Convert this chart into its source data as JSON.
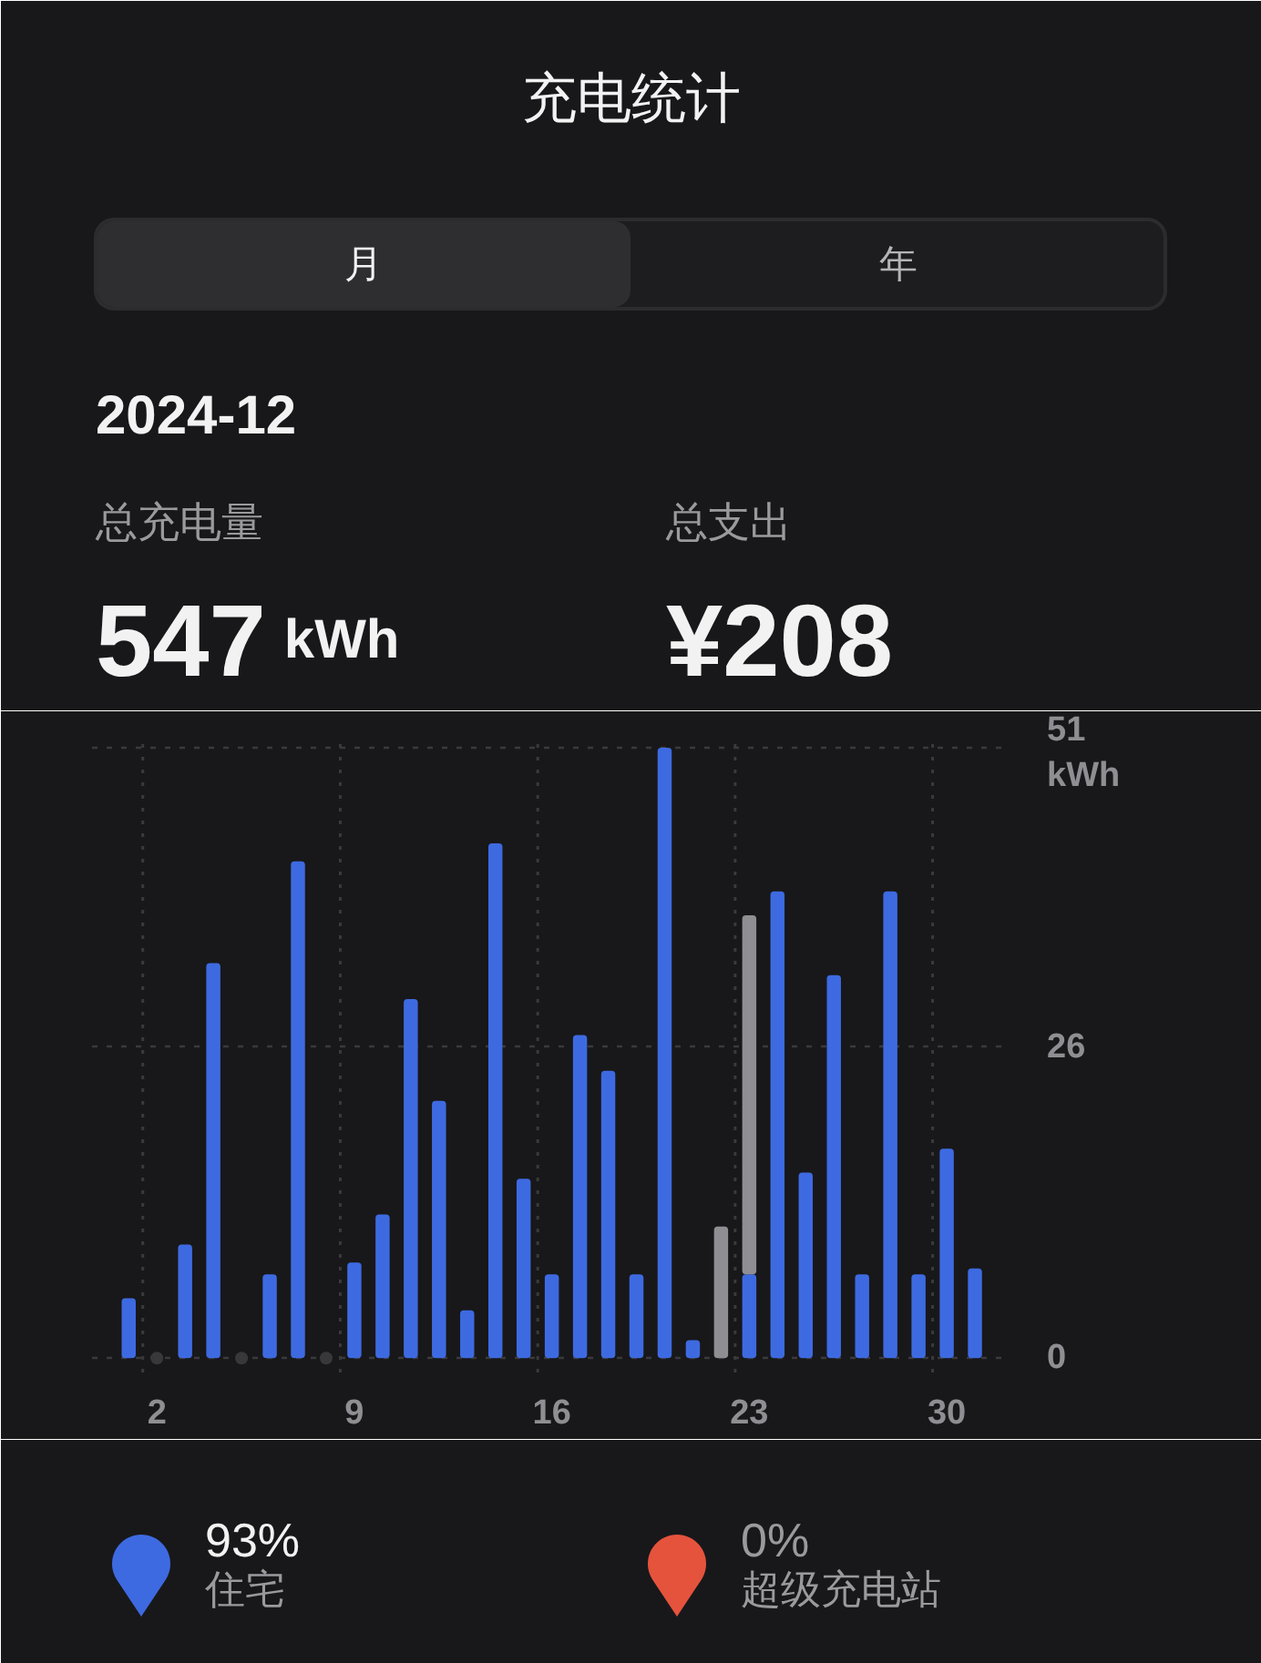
{
  "chart_data": {
    "type": "bar",
    "title": "充电统计",
    "subtitle": "2024-12",
    "annotations": [
      "月",
      "年",
      "总充电量",
      "547 kWh",
      "总支出",
      "¥208",
      "93%",
      "0%"
    ],
    "x": [
      1,
      2,
      3,
      4,
      5,
      6,
      7,
      8,
      9,
      10,
      11,
      12,
      13,
      14,
      15,
      16,
      17,
      18,
      19,
      20,
      21,
      22,
      23,
      24,
      25,
      26,
      27,
      28,
      29,
      30,
      31
    ],
    "xlim": [
      -0.3,
      32
    ],
    "xticks": [
      2,
      9,
      16,
      23,
      30
    ],
    "ylim": [
      -1.5,
      51.3
    ],
    "yticks": [
      0,
      26,
      {
        "value": 51,
        "label": "51 kWh"
      }
    ],
    "grid": "y",
    "stacked": true,
    "legend": "bottom",
    "marker": "circle",
    "ref_lines": [
      {
        "axis": "x",
        "value": 1.5,
        "color": "#3a3a3c",
        "line_style": "dotted"
      },
      {
        "axis": "x",
        "value": 8.5,
        "color": "#3a3a3c",
        "line_style": "dotted"
      },
      {
        "axis": "x",
        "value": 15.5,
        "color": "#3a3a3c",
        "line_style": "dotted"
      },
      {
        "axis": "x",
        "value": 22.5,
        "color": "#3a3a3c",
        "line_style": "dotted"
      },
      {
        "axis": "x",
        "value": 29.5,
        "color": "#3a3a3c",
        "line_style": "dotted"
      }
    ],
    "series": [
      {
        "name": "住宅",
        "color": "#3e6ae1",
        "values": [
          5,
          null,
          9.5,
          33,
          null,
          7,
          41.5,
          null,
          8,
          12,
          30,
          21.5,
          4,
          43,
          15,
          7,
          27,
          24,
          7,
          51,
          1.5,
          null,
          7,
          39,
          15.5,
          32,
          7,
          39,
          7,
          17.5,
          7.5
        ]
      },
      {
        "color": "#8e8e93",
        "values": [
          null,
          null,
          null,
          null,
          null,
          null,
          null,
          null,
          null,
          null,
          null,
          null,
          null,
          null,
          null,
          null,
          null,
          null,
          null,
          null,
          null,
          11,
          30,
          null,
          null,
          null,
          null,
          null,
          null,
          null,
          null
        ]
      },
      {
        "type": "scatter",
        "color": "#38383a",
        "x": [
          2,
          5,
          8
        ],
        "values": [
          0,
          0,
          0
        ]
      },
      {
        "name": "超级充电站",
        "color": "#e5533d",
        "values": [
          null,
          null,
          null,
          null,
          null,
          null,
          null,
          null,
          null,
          null,
          null,
          null,
          null,
          null,
          null,
          null,
          null,
          null,
          null,
          null,
          null,
          null,
          null,
          null,
          null,
          null,
          null,
          null,
          null,
          null,
          null
        ]
      }
    ]
  }
}
